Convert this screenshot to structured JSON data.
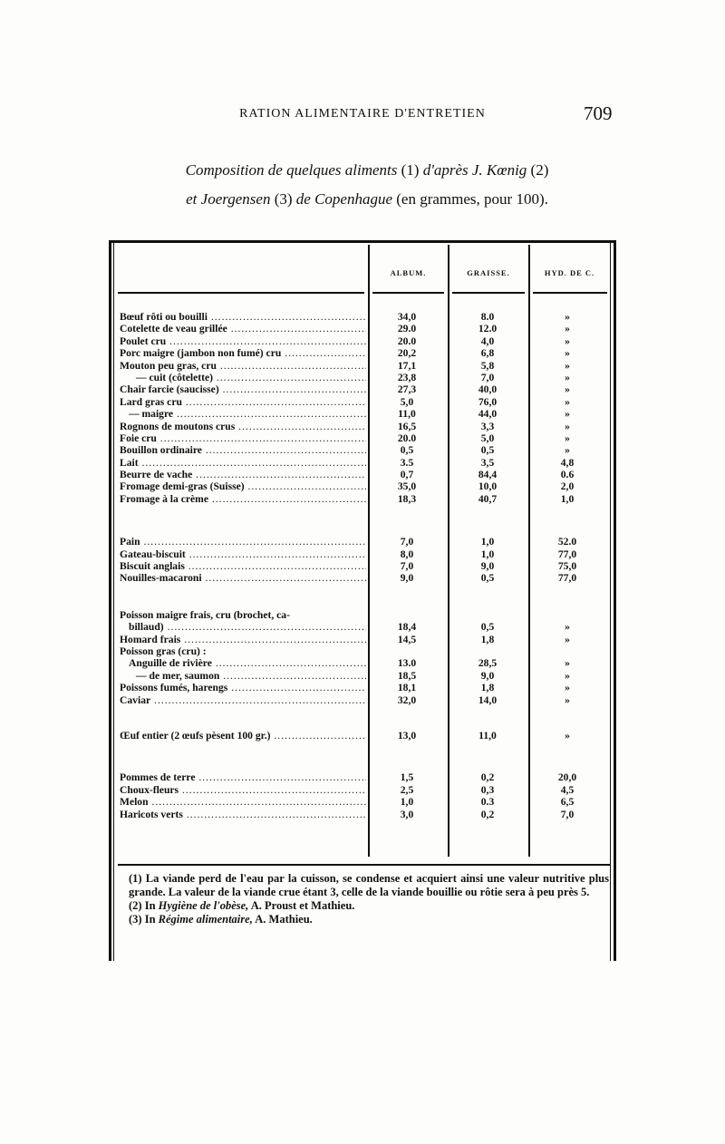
{
  "header": {
    "running_title": "RATION ALIMENTAIRE D'ENTRETIEN",
    "page_number": "709"
  },
  "caption": {
    "line1_italic": "Composition de quelques aliments",
    "line1_ref1": "(1)",
    "line1_italic2": "d'après J. Kœnig",
    "line1_ref2": "(2)",
    "line2_italic": "et Joergensen",
    "line2_ref": "(3)",
    "line2_italic2": "de Copenhague",
    "line2_rest": "(en grammes, pour 100)."
  },
  "table": {
    "columns": [
      "ALBUM.",
      "GRAISSE.",
      "HYD. DE C."
    ],
    "groups": [
      {
        "rows": [
          {
            "label": "Bœuf rôti ou bouilli",
            "indent": 0,
            "album": "34,0",
            "graisse": "8.0",
            "hyd": "»"
          },
          {
            "label": "Cotelette de veau grillée",
            "indent": 0,
            "album": "29.0",
            "graisse": "12.0",
            "hyd": "»"
          },
          {
            "label": "Poulet cru",
            "indent": 0,
            "album": "20.0",
            "graisse": "4,0",
            "hyd": "»"
          },
          {
            "label": "Porc maigre (jambon non fumé) cru",
            "indent": 0,
            "album": "20,2",
            "graisse": "6,8",
            "hyd": "»"
          },
          {
            "label": "Mouton peu gras, cru",
            "indent": 0,
            "album": "17,1",
            "graisse": "5,8",
            "hyd": "»"
          },
          {
            "label": "—              cuit (côtelette)",
            "indent": 2,
            "album": "23,8",
            "graisse": "7,0",
            "hyd": "»"
          },
          {
            "label": "Chair farcie (saucisse)",
            "indent": 0,
            "album": "27,3",
            "graisse": "40,0",
            "hyd": "»"
          },
          {
            "label": "Lard gras cru",
            "indent": 0,
            "album": "5,0",
            "graisse": "76,0",
            "hyd": "»"
          },
          {
            "label": "—   maigre",
            "indent": 1,
            "album": "11,0",
            "graisse": "44,0",
            "hyd": "»"
          },
          {
            "label": "Rognons de moutons crus",
            "indent": 0,
            "album": "16,5",
            "graisse": "3,3",
            "hyd": "»"
          },
          {
            "label": "Foie cru",
            "indent": 0,
            "album": "20.0",
            "graisse": "5,0",
            "hyd": "»"
          },
          {
            "label": "Bouillon ordinaire",
            "indent": 0,
            "album": "0,5",
            "graisse": "0,5",
            "hyd": "»"
          },
          {
            "label": "Lait",
            "indent": 0,
            "album": "3.5",
            "graisse": "3,5",
            "hyd": "4,8"
          },
          {
            "label": "Beurre de vache",
            "indent": 0,
            "album": "0,7",
            "graisse": "84,4",
            "hyd": "0.6"
          },
          {
            "label": "Fromage demi-gras (Suisse)",
            "indent": 0,
            "album": "35,0",
            "graisse": "10,0",
            "hyd": "2,0"
          },
          {
            "label": "Fromage à la crème",
            "indent": 0,
            "album": "18,3",
            "graisse": "40,7",
            "hyd": "1,0"
          }
        ]
      },
      {
        "rows": [
          {
            "label": "Pain",
            "indent": 0,
            "album": "7,0",
            "graisse": "1,0",
            "hyd": "52.0"
          },
          {
            "label": "Gateau-biscuit",
            "indent": 0,
            "album": "8,0",
            "graisse": "1,0",
            "hyd": "77,0"
          },
          {
            "label": "Biscuit anglais",
            "indent": 0,
            "album": "7,0",
            "graisse": "9,0",
            "hyd": "75,0"
          },
          {
            "label": "Nouilles-macaroni",
            "indent": 0,
            "album": "9,0",
            "graisse": "0,5",
            "hyd": "77,0"
          }
        ]
      },
      {
        "rows": [
          {
            "label": "Poisson maigre frais, cru (brochet, ca-",
            "indent": 0,
            "nodots": true,
            "album": "",
            "graisse": "",
            "hyd": ""
          },
          {
            "label": "billaud)",
            "indent": 1,
            "album": "18,4",
            "graisse": "0,5",
            "hyd": "»"
          },
          {
            "label": "Homard frais",
            "indent": 0,
            "album": "14,5",
            "graisse": "1,8",
            "hyd": "»"
          },
          {
            "label": "Poisson gras (cru) :",
            "indent": 0,
            "nodots": true,
            "album": "",
            "graisse": "",
            "hyd": ""
          },
          {
            "label": "Anguille de rivière",
            "indent": 1,
            "album": "13.0",
            "graisse": "28,5",
            "hyd": "»"
          },
          {
            "label": "—       de mer, saumon",
            "indent": 2,
            "album": "18,5",
            "graisse": "9,0",
            "hyd": "»"
          },
          {
            "label": "Poissons fumés, harengs",
            "indent": 0,
            "album": "18,1",
            "graisse": "1,8",
            "hyd": "»"
          },
          {
            "label": "Caviar",
            "indent": 0,
            "album": "32,0",
            "graisse": "14,0",
            "hyd": "»"
          }
        ]
      },
      {
        "rows": [
          {
            "label": "Œuf entier (2 œufs pèsent 100 gr.)",
            "indent": 0,
            "album": "13,0",
            "graisse": "11,0",
            "hyd": "»"
          }
        ]
      },
      {
        "rows": [
          {
            "label": "Pommes de terre",
            "indent": 0,
            "album": "1,5",
            "graisse": "0,2",
            "hyd": "20,0"
          },
          {
            "label": "Choux-fleurs",
            "indent": 0,
            "album": "2,5",
            "graisse": "0,3",
            "hyd": "4,5"
          },
          {
            "label": "Melon",
            "indent": 0,
            "album": "1,0",
            "graisse": "0.3",
            "hyd": "6,5"
          },
          {
            "label": "Haricots verts",
            "indent": 0,
            "album": "3,0",
            "graisse": "0,2",
            "hyd": "7,0"
          }
        ]
      }
    ]
  },
  "footnotes": {
    "n1": "(1) La viande perd de l'eau par la cuisson, se condense et acquiert ainsi une valeur nutritive plus grande. La valeur de la viande crue étant 3, celle de la viande bouillie ou rôtie sera à peu près 5.",
    "n2_prefix": "(2) In",
    "n2_title": "Hygiène de l'obèse,",
    "n2_author": "A. Proust et Mathieu.",
    "n3_prefix": "(3) In",
    "n3_title": "Régime alimentaire,",
    "n3_author": "A. Mathieu."
  }
}
